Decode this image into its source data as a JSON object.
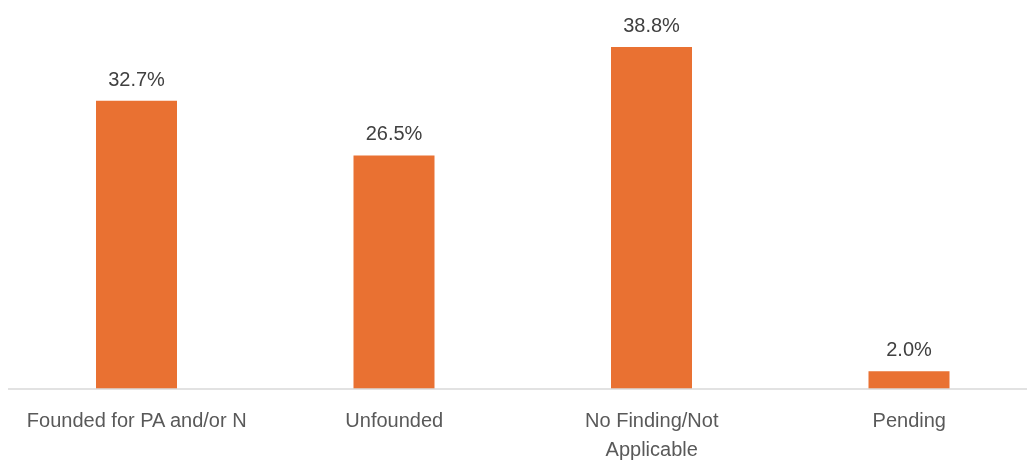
{
  "chart_data": {
    "type": "bar",
    "categories": [
      "Founded for PA and/or N",
      "Unfounded",
      "No Finding/Not Applicable",
      "Pending"
    ],
    "values": [
      32.7,
      26.5,
      38.8,
      2.0
    ],
    "color": "#e97132",
    "value_labels": [
      "32.7%",
      "26.5%",
      "38.8%",
      "2.0%"
    ]
  }
}
